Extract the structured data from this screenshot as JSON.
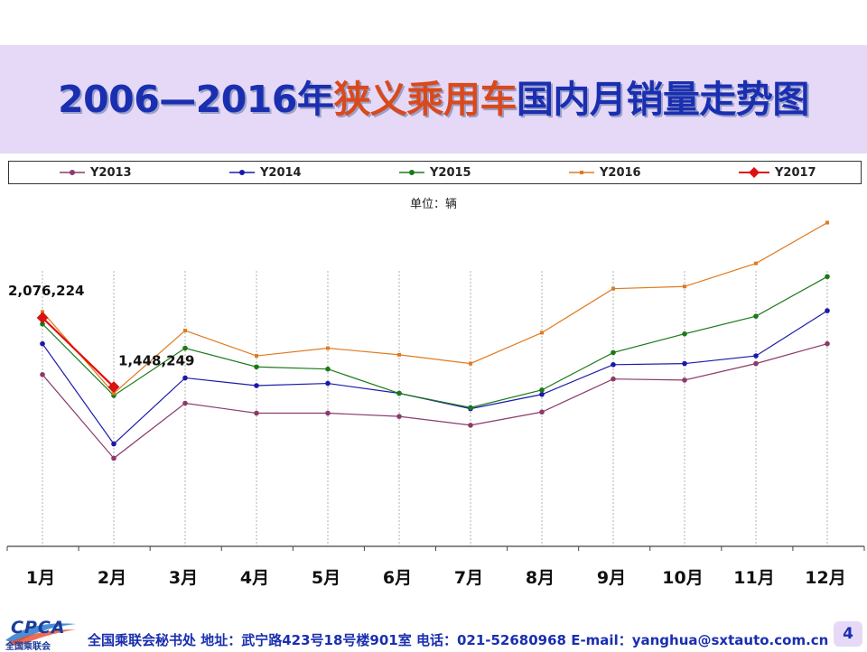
{
  "title": {
    "prefix": "2006—2016年",
    "highlight": "狭义乘用车",
    "suffix": "国内月销量走势图"
  },
  "unit_label": "单位：辆",
  "colors": {
    "title_blue": "#1a2fb0",
    "title_red": "#d84a1d",
    "band": "#e6d9f7"
  },
  "chart_data": {
    "type": "line",
    "categories": [
      "1月",
      "2月",
      "3月",
      "4月",
      "5月",
      "6月",
      "7月",
      "8月",
      "9月",
      "10月",
      "11月",
      "12月"
    ],
    "ylim": [
      0,
      2600000
    ],
    "grid": "vertical dotted",
    "legend_placement": "top",
    "series": [
      {
        "name": "Y2013",
        "color": "#8b3a6b",
        "marker": "circle",
        "values": [
          1560000,
          800000,
          1300000,
          1210000,
          1210000,
          1180000,
          1100000,
          1220000,
          1520000,
          1510000,
          1660000,
          1840000
        ]
      },
      {
        "name": "Y2014",
        "color": "#1a1aa8",
        "marker": "circle",
        "values": [
          1840000,
          930000,
          1530000,
          1460000,
          1480000,
          1390000,
          1250000,
          1380000,
          1650000,
          1660000,
          1730000,
          2140000
        ]
      },
      {
        "name": "Y2015",
        "color": "#1a7a1a",
        "marker": "circle",
        "values": [
          2020000,
          1370000,
          1800000,
          1630000,
          1610000,
          1390000,
          1260000,
          1420000,
          1760000,
          1930000,
          2090000,
          2450000
        ]
      },
      {
        "name": "Y2016",
        "color": "#e07a20",
        "marker": "square",
        "values": [
          2130000,
          1390000,
          1960000,
          1730000,
          1800000,
          1740000,
          1660000,
          1940000,
          2340000,
          2360000,
          2570000,
          2940000
        ]
      },
      {
        "name": "Y2017",
        "color": "#e01010",
        "marker": "diamond",
        "values": [
          2076224,
          1448249,
          null,
          null,
          null,
          null,
          null,
          null,
          null,
          null,
          null,
          null
        ]
      }
    ],
    "annotations": [
      {
        "series": "Y2017",
        "index": 0,
        "text": "2,076,224"
      },
      {
        "series": "Y2017",
        "index": 1,
        "text": "1,448,249"
      }
    ]
  },
  "footer": {
    "logo_text": "CPCA",
    "logo_sub": "全国乘联会",
    "contact": "全国乘联会秘书处  地址：武宁路423号18号楼901室    电话：021-52680968   E-mail：yanghua@sxtauto.com.cn",
    "page_number": "4"
  }
}
